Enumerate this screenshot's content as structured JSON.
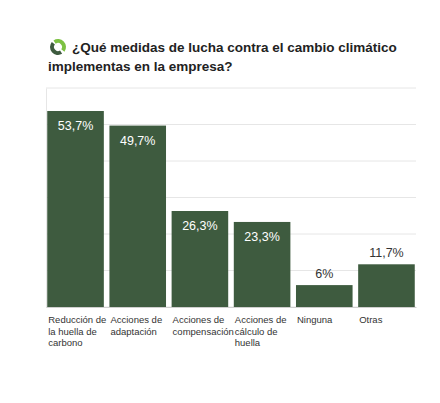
{
  "chart_data": {
    "type": "bar",
    "title": "¿Qué medidas de lucha contra el cambio climático implementas en la empresa?",
    "categories": [
      "Reducción de la huella de carbono",
      "Acciones de adaptación",
      "Acciones de compensación",
      "Acciones de cálculo de huella",
      "Ninguna",
      "Otras"
    ],
    "values": [
      53.7,
      49.7,
      26.3,
      23.3,
      6,
      11.7
    ],
    "value_labels": [
      "53,7%",
      "49,7%",
      "26,3%",
      "23,3%",
      "6%",
      "11,7%"
    ],
    "color": "#3e5b3f",
    "ylim": [
      0,
      60
    ],
    "yticks": [
      0,
      10,
      20,
      30,
      40,
      50,
      60
    ],
    "grid": true,
    "tick_labels": false,
    "data_labels": true
  }
}
